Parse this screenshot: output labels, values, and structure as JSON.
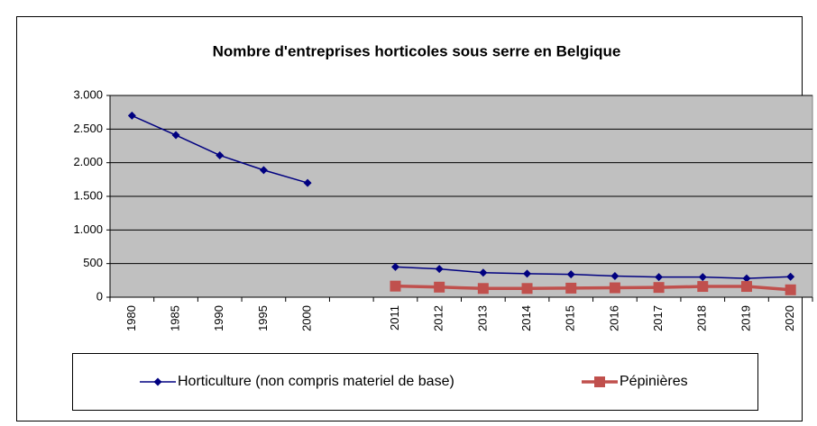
{
  "chart_data": {
    "type": "line",
    "title": "Nombre d'entreprises horticoles sous serre en Belgique",
    "categories": [
      "1980",
      "1985",
      "1990",
      "1995",
      "2000",
      null,
      "2011",
      "2012",
      "2013",
      "2014",
      "2015",
      "2016",
      "2017",
      "2018",
      "2019",
      "2020"
    ],
    "series": [
      {
        "name": "Horticulture (non compris materiel de base)",
        "color": "#000080",
        "marker": "diamond",
        "values": [
          2700,
          2410,
          2110,
          1890,
          1700,
          null,
          450,
          420,
          365,
          350,
          340,
          315,
          300,
          300,
          280,
          305
        ]
      },
      {
        "name": "Pépinières",
        "color": "#c0504d",
        "marker": "square",
        "values": [
          null,
          null,
          null,
          null,
          null,
          null,
          165,
          150,
          130,
          130,
          135,
          140,
          145,
          160,
          160,
          110
        ]
      }
    ],
    "ylim": [
      0,
      3000
    ],
    "yticks": [
      0,
      500,
      {
        "value": 1000,
        "label": "1.000"
      },
      {
        "value": 1500,
        "label": "1.500"
      },
      {
        "value": 2000,
        "label": "2.000"
      },
      {
        "value": 2500,
        "label": "2.500"
      },
      {
        "value": 3000,
        "label": "3.000"
      }
    ],
    "grid": true,
    "legend": "bottom",
    "plot_background": "#c0c0c0"
  }
}
